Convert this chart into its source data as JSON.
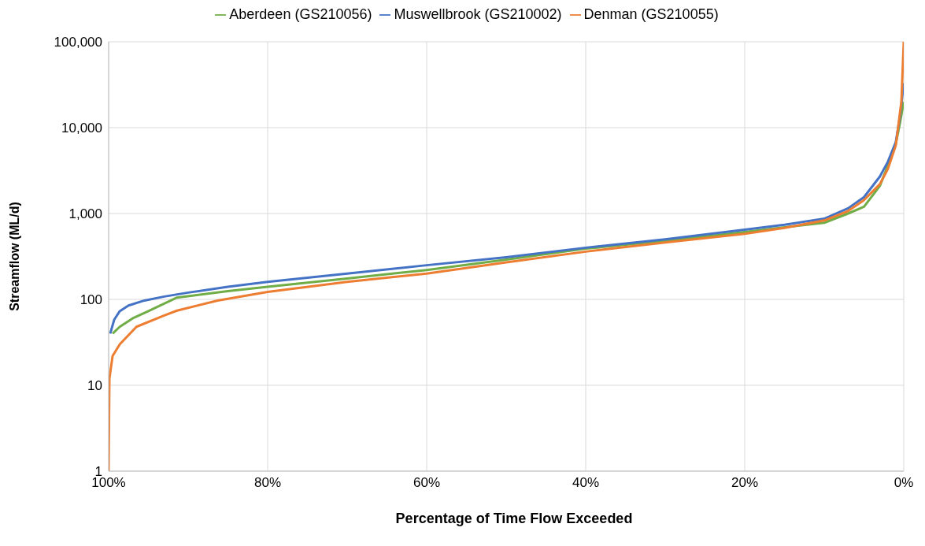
{
  "chart_data": {
    "type": "line",
    "xlabel": "Percentage of Time Flow Exceeded",
    "ylabel": "Streamflow (ML/d)",
    "log": "y",
    "grid": true,
    "legend": "top",
    "marker": "none",
    "line_style": "solid",
    "xlim": [
      100,
      0
    ],
    "xticks": [
      {
        "value": 100,
        "label": "100%"
      },
      {
        "value": 80,
        "label": "80%"
      },
      {
        "value": 60,
        "label": "60%"
      },
      {
        "value": 40,
        "label": "40%"
      },
      {
        "value": 20,
        "label": "20%"
      },
      {
        "value": 0,
        "label": "0%"
      }
    ],
    "ylim": [
      1,
      100000
    ],
    "yticks": [
      1,
      10,
      100,
      {
        "value": 1000,
        "label": "1,000"
      },
      {
        "value": 10000,
        "label": "10,000"
      },
      {
        "value": 100000,
        "label": "100,000"
      }
    ],
    "series": [
      {
        "name": "Aberdeen (GS210056)",
        "color": "#70ad47",
        "x": [
          99.5,
          98.6,
          97,
          95,
          91.4,
          85,
          80,
          70,
          60,
          50,
          40,
          30,
          20,
          15,
          10,
          7,
          5,
          3,
          2,
          1,
          0.5,
          0
        ],
        "values": [
          40,
          48,
          60,
          73,
          105,
          125,
          140,
          175,
          220,
          290,
          390,
          480,
          610,
          690,
          780,
          1000,
          1200,
          2100,
          3600,
          6500,
          11000,
          20000
        ]
      },
      {
        "name": "Muswellbrook (GS210002)",
        "color": "#4472c4",
        "x": [
          99.8,
          99.3,
          98.6,
          97.5,
          95.5,
          93,
          90,
          85,
          80,
          70,
          60,
          50,
          40,
          30,
          20,
          15,
          10,
          7,
          5,
          3,
          2,
          1,
          0.5,
          0
        ],
        "values": [
          40,
          58,
          73,
          85,
          97,
          108,
          120,
          140,
          160,
          200,
          250,
          310,
          400,
          500,
          650,
          740,
          870,
          1150,
          1550,
          2700,
          4000,
          6800,
          13000,
          33000
        ]
      },
      {
        "name": "Denman (GS210055)",
        "color": "#ed7d31",
        "x": [
          100,
          99.95,
          99.9,
          99.5,
          98.6,
          96.5,
          93,
          91.4,
          86.3,
          80,
          70,
          60,
          50,
          40,
          30,
          20,
          15,
          10,
          7,
          5,
          3,
          2,
          1,
          0.3,
          0
        ],
        "values": [
          1,
          3.5,
          12,
          22,
          30,
          48,
          65,
          74,
          97,
          122,
          160,
          200,
          270,
          360,
          460,
          580,
          680,
          830,
          1070,
          1430,
          2200,
          3300,
          6200,
          20000,
          100000
        ]
      }
    ]
  }
}
